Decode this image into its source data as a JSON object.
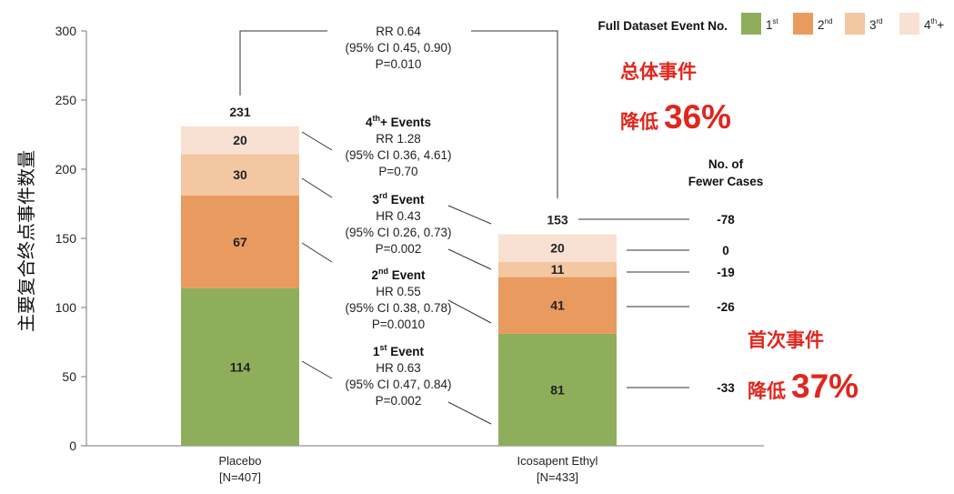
{
  "chart_data": {
    "type": "bar",
    "stacked": true,
    "ylabel": "主要复合终点事件数量",
    "ylim": [
      0,
      300
    ],
    "yticks": [
      0,
      50,
      100,
      150,
      200,
      250,
      300
    ],
    "categories": [
      {
        "name": "Placebo",
        "sub": "[N=407]"
      },
      {
        "name": "Icosapent Ethyl",
        "sub": "[N=433]"
      }
    ],
    "series": [
      {
        "key": "1st",
        "values": [
          114,
          81
        ],
        "color": "#8fae5b"
      },
      {
        "key": "2nd",
        "values": [
          67,
          41
        ],
        "color": "#e99a5e"
      },
      {
        "key": "3rd",
        "values": [
          30,
          11
        ],
        "color": "#f3c7a2"
      },
      {
        "key": "4th+",
        "values": [
          20,
          20
        ],
        "color": "#f8e1d2"
      }
    ],
    "totals": [
      "231",
      "153"
    ],
    "legend": {
      "title": "Full Dataset Event No.",
      "items": [
        {
          "base": "1",
          "sup": "st",
          "tail": "",
          "color": "#8fae5b"
        },
        {
          "base": "2",
          "sup": "nd",
          "tail": "",
          "color": "#e99a5e"
        },
        {
          "base": "3",
          "sup": "rd",
          "tail": "",
          "color": "#f3c7a2"
        },
        {
          "base": "4",
          "sup": "th",
          "tail": "+",
          "color": "#f8e1d2"
        }
      ]
    },
    "overall": {
      "lines": [
        "RR 0.64",
        "(95% CI 0.45, 0.90)",
        "P=0.010"
      ]
    },
    "comparisons": [
      {
        "title_base": "4",
        "title_sup": "th",
        "title_tail": "+ Events",
        "lines": [
          "RR 1.28",
          "(95% CI 0.36, 4.61)",
          "P=0.70"
        ]
      },
      {
        "title_base": "3",
        "title_sup": "rd",
        "title_tail": " Event",
        "lines": [
          "HR 0.43",
          "(95% CI 0.26, 0.73)",
          "P=0.002"
        ]
      },
      {
        "title_base": "2",
        "title_sup": "nd",
        "title_tail": " Event",
        "lines": [
          "HR 0.55",
          "(95% CI 0.38, 0.78)",
          "P=0.0010"
        ]
      },
      {
        "title_base": "1",
        "title_sup": "st",
        "title_tail": " Event",
        "lines": [
          "HR 0.63",
          "(95% CI 0.47, 0.84)",
          "P=0.002"
        ]
      }
    ],
    "fewer_cases": {
      "title": [
        "No. of",
        "Fewer Cases"
      ],
      "total": "-78",
      "by_segment": [
        "-33",
        "-26",
        "-19",
        "0"
      ]
    },
    "callouts": [
      {
        "title": "总体事件",
        "prefix": "降低",
        "big": "36%"
      },
      {
        "title": "首次事件",
        "prefix": "降低",
        "big": "37%"
      }
    ]
  }
}
